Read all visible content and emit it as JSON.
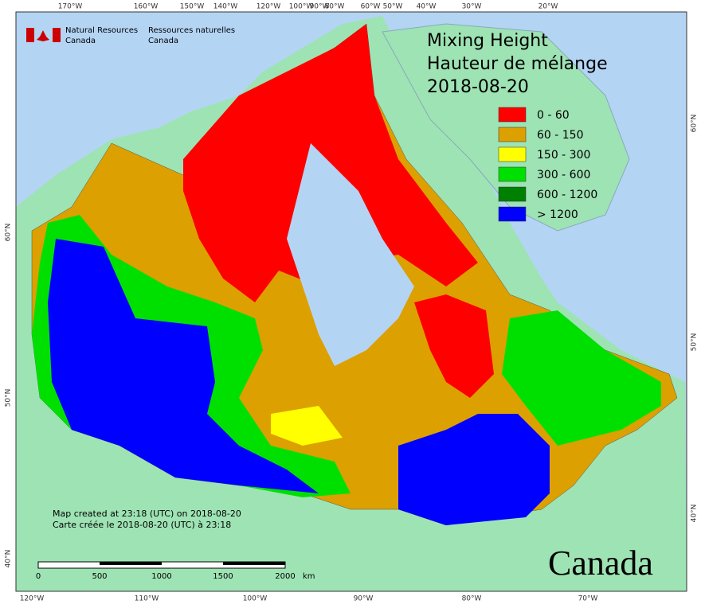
{
  "header": {
    "org_en": "Natural Resources",
    "org_en2": "Canada",
    "org_fr": "Ressources naturelles",
    "org_fr2": "Canada"
  },
  "title": {
    "line1": "Mixing Height",
    "line2": "Hauteur de mélange",
    "date": "2018-08-20"
  },
  "legend": [
    {
      "label": "0 - 60",
      "color": "#ff0000"
    },
    {
      "label": "60 - 150",
      "color": "#dca000"
    },
    {
      "label": "150 - 300",
      "color": "#ffff00"
    },
    {
      "label": "300 - 600",
      "color": "#00e000"
    },
    {
      "label": "600 - 1200",
      "color": "#008000"
    },
    {
      "label": "> 1200",
      "color": "#0000ff"
    }
  ],
  "top_longitudes": [
    "170°W",
    "160°W",
    "150°W",
    "140°W",
    "120°W",
    "100°W",
    "90°W",
    "80°W",
    "60°W",
    "50°W",
    "40°W",
    "30°W",
    "20°W"
  ],
  "bottom_longitudes": [
    "120°W",
    "110°W",
    "100°W",
    "90°W",
    "80°W",
    "70°W"
  ],
  "left_latitudes": [
    "60°N",
    "50°N",
    "40°N"
  ],
  "right_latitudes": [
    "60°N",
    "50°N",
    "40°N"
  ],
  "notes": {
    "created_en": "Map created at 23:18 (UTC) on 2018-08-20",
    "created_fr": "Carte créée le 2018-08-20 (UTC) à 23:18"
  },
  "scale": {
    "labels": [
      "0",
      "500",
      "1000",
      "1500",
      "2000"
    ],
    "unit": "km"
  },
  "wordmark": "Canada"
}
